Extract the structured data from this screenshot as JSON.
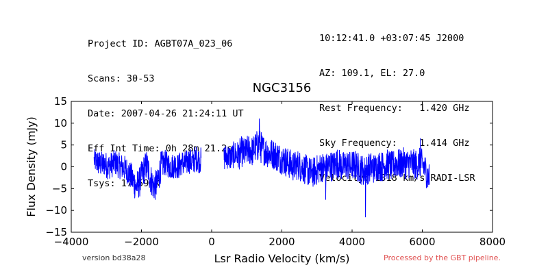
{
  "header": {
    "left": [
      "Project ID: AGBT07A_023_06",
      "Scans: 30-53",
      "Date: 2007-04-26 21:24:11 UT",
      "Eff Int Time: 0h 28m 21.2s",
      "Tsys: 17.59 K"
    ],
    "right": [
      "10:12:41.0 +03:07:45 J2000",
      "AZ: 109.1, EL: 27.0",
      "Rest Frequency:   1.420 GHz",
      "Sky Frequency:    1.414 GHz",
      "Velocity: 1318 km/s RADI-LSR"
    ]
  },
  "footer": {
    "version": "version bd38a28",
    "processed": "Processed by the GBT pipeline."
  },
  "chart_data": {
    "type": "line",
    "title": "NGC3156",
    "xlabel": "Lsr Radio Velocity (km/s)",
    "ylabel": "Flux Density (mJy)",
    "xlim": [
      -4000,
      8000
    ],
    "ylim": [
      -15,
      15
    ],
    "xticks": [
      -4000,
      -2000,
      0,
      2000,
      4000,
      6000,
      8000
    ],
    "xtick_labels": [
      "−4000",
      "−2000",
      "0",
      "2000",
      "4000",
      "6000",
      "8000"
    ],
    "yticks": [
      -15,
      -10,
      -5,
      0,
      5,
      10,
      15
    ],
    "ytick_labels": [
      "−15",
      "−10",
      "−5",
      "0",
      "5",
      "10",
      "15"
    ],
    "grid": false,
    "line_color": "#0000ff",
    "series": [
      {
        "segments": [
          {
            "x": [
              -3350,
              -3250,
              -3150,
              -3050,
              -2950,
              -2850,
              -2750,
              -2650,
              -2550,
              -2450,
              -2350,
              -2250,
              -2150,
              -2050,
              -1950,
              -1850,
              -1750,
              -1650,
              -1550,
              -1450,
              -1350,
              -1250,
              -1150,
              -1050,
              -950,
              -850,
              -750,
              -650,
              -550,
              -450,
              -350,
              -300
            ],
            "y": [
              1.5,
              1.0,
              0.5,
              0.8,
              0.0,
              0.5,
              1.0,
              0.3,
              0.0,
              -0.5,
              -1.5,
              -3.0,
              -4.5,
              -3.5,
              -1.0,
              0.5,
              -2.5,
              -4.5,
              -4.0,
              0.0,
              1.0,
              0.5,
              0.0,
              0.5,
              0.0,
              1.0,
              0.5,
              1.5,
              1.0,
              2.0,
              1.5,
              1.5
            ],
            "amp": [
              2.5,
              3.0,
              3.0,
              3.0,
              3.0,
              3.0,
              3.0,
              3.0,
              3.0,
              3.0,
              3.0,
              3.5,
              3.5,
              3.5,
              3.5,
              3.5,
              3.5,
              3.5,
              3.5,
              3.5,
              3.0,
              3.0,
              3.0,
              3.0,
              3.0,
              3.0,
              3.0,
              3.0,
              3.0,
              3.0,
              3.0,
              3.0
            ]
          },
          {
            "x": [
              350,
              450,
              550,
              650,
              750,
              850,
              950,
              1050,
              1150,
              1250,
              1350,
              1450,
              1550,
              1650,
              1750,
              1850,
              1950,
              2050,
              2150,
              2250,
              2350,
              2450,
              2550,
              2650,
              2750,
              2850,
              2950,
              3050,
              3150,
              3250,
              3350,
              3450,
              3550,
              3650,
              3750,
              3850,
              3950,
              4050,
              4150,
              4250,
              4350,
              4450,
              4550,
              4650,
              4750,
              4850,
              4950,
              5050,
              5150,
              5250,
              5350,
              5450,
              5550,
              5650,
              5750,
              5850,
              5950,
              6050,
              6150,
              6200
            ],
            "y": [
              2.0,
              2.5,
              2.0,
              3.0,
              2.5,
              3.5,
              3.0,
              4.0,
              3.5,
              4.5,
              5.0,
              4.0,
              3.5,
              3.0,
              3.0,
              2.5,
              2.0,
              1.5,
              1.0,
              0.5,
              0.0,
              0.5,
              0.0,
              -0.5,
              -1.0,
              -1.5,
              -1.0,
              -0.5,
              0.0,
              -0.5,
              0.5,
              0.0,
              1.0,
              0.5,
              0.0,
              0.5,
              0.0,
              0.5,
              0.0,
              -0.5,
              -1.0,
              -0.5,
              0.0,
              -0.5,
              0.5,
              0.0,
              0.5,
              0.5,
              0.0,
              1.0,
              0.5,
              1.0,
              0.5,
              1.0,
              0.5,
              0.5,
              1.0,
              0.0,
              -2.0,
              -2.5
            ],
            "amp": [
              3.0,
              3.0,
              3.0,
              3.0,
              3.5,
              3.5,
              3.5,
              3.5,
              3.5,
              3.5,
              4.0,
              3.5,
              3.5,
              3.5,
              3.5,
              3.5,
              3.5,
              3.5,
              3.5,
              3.5,
              3.5,
              3.5,
              3.5,
              3.5,
              3.5,
              3.5,
              3.5,
              3.5,
              3.5,
              3.5,
              3.5,
              3.5,
              3.5,
              3.5,
              3.5,
              3.5,
              3.5,
              3.5,
              3.5,
              3.5,
              3.5,
              3.5,
              3.5,
              3.5,
              3.5,
              3.5,
              3.5,
              3.5,
              3.5,
              3.5,
              3.5,
              3.5,
              3.5,
              3.5,
              3.5,
              3.5,
              3.5,
              3.5,
              3.5,
              3.5
            ]
          }
        ],
        "spikes": [
          {
            "x": 1360,
            "y": 11.0
          },
          {
            "x": 4380,
            "y": -11.5
          },
          {
            "x": 5950,
            "y": 6.5
          },
          {
            "x": 3250,
            "y": -7.5
          }
        ]
      }
    ]
  }
}
